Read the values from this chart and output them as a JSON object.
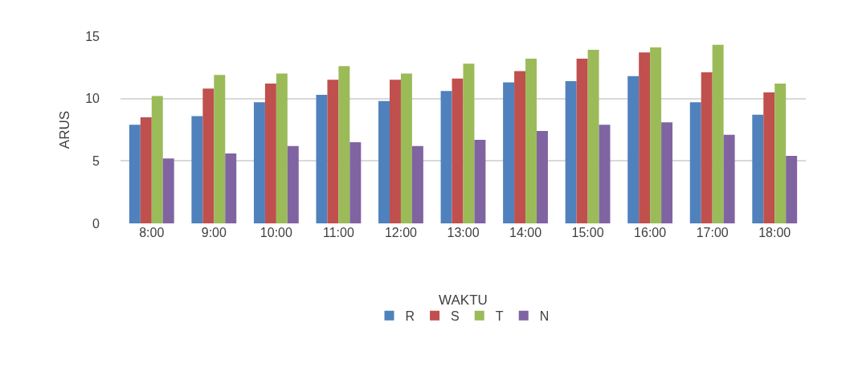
{
  "chart_data": {
    "type": "bar",
    "xlabel": "WAKTU",
    "ylabel": "ARUS",
    "categories": [
      "8:00",
      "9:00",
      "10:00",
      "11:00",
      "12:00",
      "13:00",
      "14:00",
      "15:00",
      "16:00",
      "17:00",
      "18:00"
    ],
    "series": [
      {
        "name": "R",
        "color": "#4f81bd",
        "values": [
          7.9,
          8.6,
          9.7,
          10.3,
          9.8,
          10.6,
          11.3,
          11.4,
          11.8,
          9.7,
          8.7
        ]
      },
      {
        "name": "S",
        "color": "#c0504d",
        "values": [
          8.5,
          10.8,
          11.2,
          11.5,
          11.5,
          11.6,
          12.2,
          13.2,
          13.7,
          12.1,
          10.5
        ]
      },
      {
        "name": "T",
        "color": "#9bbb59",
        "values": [
          10.2,
          11.9,
          12.0,
          12.6,
          12.0,
          12.8,
          13.2,
          13.9,
          14.1,
          14.3,
          11.2
        ]
      },
      {
        "name": "N",
        "color": "#8064a2",
        "values": [
          5.2,
          5.6,
          6.2,
          6.5,
          6.2,
          6.7,
          7.4,
          7.9,
          8.1,
          7.1,
          5.4
        ]
      }
    ],
    "ylim": [
      0,
      15
    ],
    "yticks": [
      0,
      5,
      10,
      15
    ],
    "grid": "y",
    "legend": "bottom"
  }
}
